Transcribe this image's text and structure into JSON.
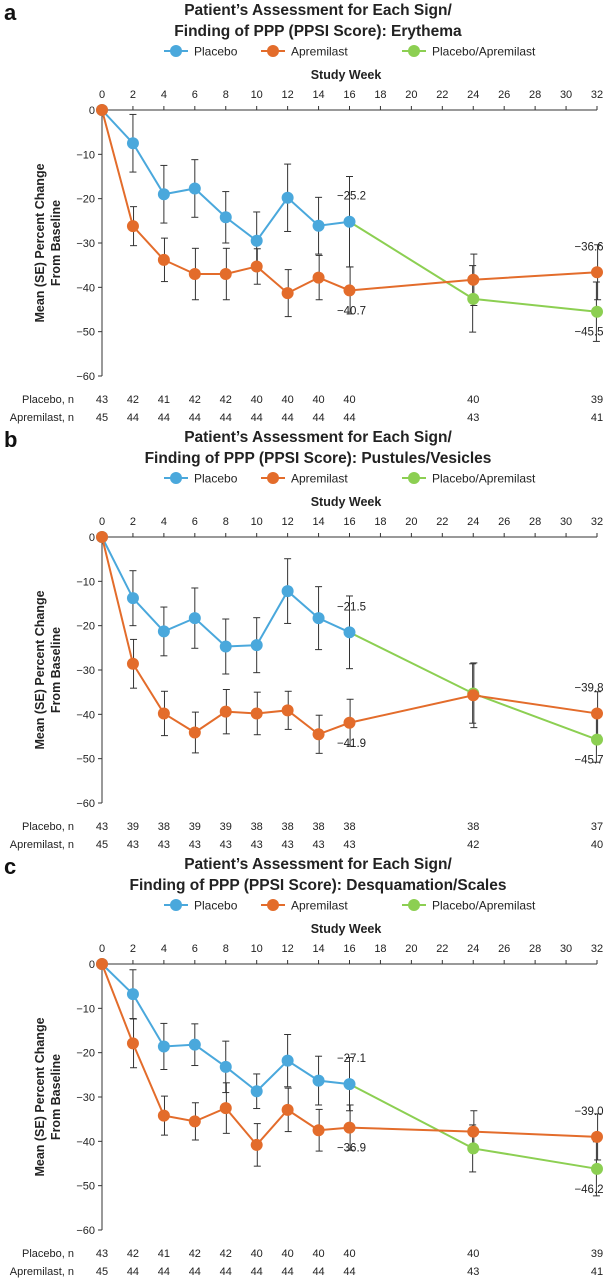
{
  "legend": [
    {
      "name": "Placebo",
      "color": "#4aa8dc"
    },
    {
      "name": "Apremilast",
      "color": "#e36c2b"
    },
    {
      "name": "Placebo/Apremilast",
      "color": "#8ccf52"
    }
  ],
  "row_labels": {
    "placebo": "Placebo, n",
    "apremilast": "Apremilast, n"
  },
  "xlabel": "Study Week",
  "ylabel_line1": "Mean (SE) Percent Change",
  "ylabel_line2": "From Baseline",
  "chart_data": [
    {
      "type": "line",
      "panel": "a",
      "title_line1": "Patient’s Assessment for Each Sign/",
      "title_line2": "Finding of PPP (PPSI Score): Erythema",
      "xlabel": "Study Week",
      "ylabel": "Mean (SE) Percent Change From Baseline",
      "xlim": [
        0,
        32
      ],
      "ylim": [
        -60,
        0
      ],
      "xticks": [
        0,
        2,
        4,
        6,
        8,
        10,
        12,
        14,
        16,
        18,
        20,
        22,
        24,
        26,
        28,
        30,
        32
      ],
      "yticks": [
        0,
        -10,
        -20,
        -30,
        -40,
        -50,
        -60
      ],
      "series": [
        {
          "name": "Placebo",
          "color": "#4aa8dc",
          "x": [
            0,
            2,
            4,
            6,
            8,
            10,
            12,
            14,
            16
          ],
          "y": [
            0,
            -7.5,
            -19,
            -17.7,
            -24.2,
            -29.5,
            -19.8,
            -26.1,
            -25.2
          ],
          "se": [
            0,
            6.5,
            6.5,
            6.5,
            5.8,
            6.5,
            7.6,
            6.4,
            10.2
          ]
        },
        {
          "name": "Apremilast",
          "color": "#e36c2b",
          "x": [
            0,
            2,
            4,
            6,
            8,
            10,
            12,
            14,
            16,
            24,
            32
          ],
          "y": [
            0,
            -26.2,
            -33.8,
            -37,
            -37,
            -35.3,
            -41.3,
            -37.8,
            -40.7,
            -38.3,
            -36.6
          ],
          "se": [
            0,
            4.4,
            4.9,
            5.8,
            5.8,
            4.0,
            5.3,
            5.0,
            5.3,
            5.8,
            6.2
          ]
        },
        {
          "name": "Placebo/Apremilast",
          "color": "#8ccf52",
          "x": [
            16,
            24,
            32
          ],
          "y": [
            -25.2,
            -42.6,
            -45.5
          ],
          "se": [
            0,
            7.5,
            6.7
          ]
        }
      ],
      "annotations": [
        {
          "text": "−25.2",
          "x": 16,
          "y": -25.2,
          "pos": "above"
        },
        {
          "text": "−40.7",
          "x": 16,
          "y": -40.7,
          "pos": "below"
        },
        {
          "text": "−36.6",
          "x": 32,
          "y": -36.6,
          "pos": "above"
        },
        {
          "text": "−45.5",
          "x": 32,
          "y": -45.5,
          "pos": "below"
        }
      ],
      "n_placebo": {
        "weeks": [
          0,
          2,
          4,
          6,
          8,
          10,
          12,
          14,
          16,
          24,
          32
        ],
        "values": [
          "43",
          "42",
          "41",
          "42",
          "42",
          "40",
          "40",
          "40",
          "40",
          "40",
          "39"
        ]
      },
      "n_apremilast": {
        "weeks": [
          0,
          2,
          4,
          6,
          8,
          10,
          12,
          14,
          16,
          24,
          32
        ],
        "values": [
          "45",
          "44",
          "44",
          "44",
          "44",
          "44",
          "44",
          "44",
          "44",
          "43",
          "41"
        ]
      }
    },
    {
      "type": "line",
      "panel": "b",
      "title_line1": "Patient’s Assessment for Each Sign/",
      "title_line2": "Finding of PPP (PPSI Score): Pustules/Vesicles",
      "xlabel": "Study Week",
      "ylabel": "Mean (SE) Percent Change From Baseline",
      "xlim": [
        0,
        32
      ],
      "ylim": [
        -60,
        0
      ],
      "xticks": [
        0,
        2,
        4,
        6,
        8,
        10,
        12,
        14,
        16,
        18,
        20,
        22,
        24,
        26,
        28,
        30,
        32
      ],
      "yticks": [
        0,
        -10,
        -20,
        -30,
        -40,
        -50,
        -60
      ],
      "series": [
        {
          "name": "Placebo",
          "color": "#4aa8dc",
          "x": [
            0,
            2,
            4,
            6,
            8,
            10,
            12,
            14,
            16
          ],
          "y": [
            0,
            -13.8,
            -21.3,
            -18.3,
            -24.7,
            -24.4,
            -12.2,
            -18.3,
            -21.5
          ],
          "se": [
            0,
            6.2,
            5.5,
            6.8,
            6.2,
            6.2,
            7.3,
            7.1,
            8.2
          ]
        },
        {
          "name": "Apremilast",
          "color": "#e36c2b",
          "x": [
            0,
            2,
            4,
            6,
            8,
            10,
            12,
            14,
            16,
            24,
            32
          ],
          "y": [
            0,
            -28.6,
            -39.8,
            -44.1,
            -39.4,
            -39.8,
            -39.1,
            -44.5,
            -41.9,
            -35.7,
            -39.8
          ],
          "se": [
            0,
            5.5,
            5.0,
            4.6,
            5.0,
            4.8,
            4.3,
            4.3,
            5.3,
            7.3,
            4.9
          ]
        },
        {
          "name": "Placebo/Apremilast",
          "color": "#8ccf52",
          "x": [
            16,
            24,
            32
          ],
          "y": [
            -21.5,
            -35.3,
            -45.7
          ],
          "se": [
            0,
            6.7,
            5.1
          ]
        }
      ],
      "annotations": [
        {
          "text": "−21.5",
          "x": 16,
          "y": -21.5,
          "pos": "above"
        },
        {
          "text": "−41.9",
          "x": 16,
          "y": -41.9,
          "pos": "below"
        },
        {
          "text": "−39.8",
          "x": 32,
          "y": -39.8,
          "pos": "above"
        },
        {
          "text": "−45.7",
          "x": 32,
          "y": -45.7,
          "pos": "below"
        }
      ],
      "n_placebo": {
        "weeks": [
          0,
          2,
          4,
          6,
          8,
          10,
          12,
          14,
          16,
          24,
          32
        ],
        "values": [
          "43",
          "39",
          "38",
          "39",
          "39",
          "38",
          "38",
          "38",
          "38",
          "38",
          "37"
        ]
      },
      "n_apremilast": {
        "weeks": [
          0,
          2,
          4,
          6,
          8,
          10,
          12,
          14,
          16,
          24,
          32
        ],
        "values": [
          "45",
          "43",
          "43",
          "43",
          "43",
          "43",
          "43",
          "43",
          "43",
          "42",
          "40"
        ]
      }
    },
    {
      "type": "line",
      "panel": "c",
      "title_line1": "Patient’s Assessment for Each Sign/",
      "title_line2": "Finding of PPP (PPSI Score): Desquamation/Scales",
      "xlabel": "Study Week",
      "ylabel": "Mean (SE) Percent Change From Baseline",
      "xlim": [
        0,
        32
      ],
      "ylim": [
        -60,
        0
      ],
      "xticks": [
        0,
        2,
        4,
        6,
        8,
        10,
        12,
        14,
        16,
        18,
        20,
        22,
        24,
        26,
        28,
        30,
        32
      ],
      "yticks": [
        0,
        -10,
        -20,
        -30,
        -40,
        -50,
        -60
      ],
      "series": [
        {
          "name": "Placebo",
          "color": "#4aa8dc",
          "x": [
            0,
            2,
            4,
            6,
            8,
            10,
            12,
            14,
            16
          ],
          "y": [
            0,
            -6.8,
            -18.6,
            -18.2,
            -23.2,
            -28.7,
            -21.8,
            -26.3,
            -27.1
          ],
          "se": [
            0,
            5.5,
            5.2,
            4.7,
            5.8,
            3.9,
            5.9,
            5.5,
            6.0
          ]
        },
        {
          "name": "Apremilast",
          "color": "#e36c2b",
          "x": [
            0,
            2,
            4,
            6,
            8,
            10,
            12,
            14,
            16,
            24,
            32
          ],
          "y": [
            0,
            -17.9,
            -34.2,
            -35.5,
            -32.5,
            -40.8,
            -32.9,
            -37.5,
            -36.9,
            -37.8,
            -39.0
          ],
          "se": [
            0,
            5.5,
            4.4,
            4.2,
            5.7,
            4.8,
            4.9,
            4.7,
            5.1,
            4.7,
            5.2
          ]
        },
        {
          "name": "Placebo/Apremilast",
          "color": "#8ccf52",
          "x": [
            16,
            24,
            32
          ],
          "y": [
            -27.1,
            -41.6,
            -46.2
          ],
          "se": [
            0,
            5.3,
            6.1
          ]
        }
      ],
      "annotations": [
        {
          "text": "−27.1",
          "x": 16,
          "y": -27.1,
          "pos": "above"
        },
        {
          "text": "−36.9",
          "x": 16,
          "y": -36.9,
          "pos": "below"
        },
        {
          "text": "−39.0",
          "x": 32,
          "y": -39.0,
          "pos": "above"
        },
        {
          "text": "−46.2",
          "x": 32,
          "y": -46.2,
          "pos": "below"
        }
      ],
      "n_placebo": {
        "weeks": [
          0,
          2,
          4,
          6,
          8,
          10,
          12,
          14,
          16,
          24,
          32
        ],
        "values": [
          "43",
          "42",
          "41",
          "42",
          "42",
          "40",
          "40",
          "40",
          "40",
          "40",
          "39"
        ]
      },
      "n_apremilast": {
        "weeks": [
          0,
          2,
          4,
          6,
          8,
          10,
          12,
          14,
          16,
          24,
          32
        ],
        "values": [
          "45",
          "44",
          "44",
          "44",
          "44",
          "44",
          "44",
          "44",
          "44",
          "43",
          "41"
        ]
      }
    }
  ]
}
